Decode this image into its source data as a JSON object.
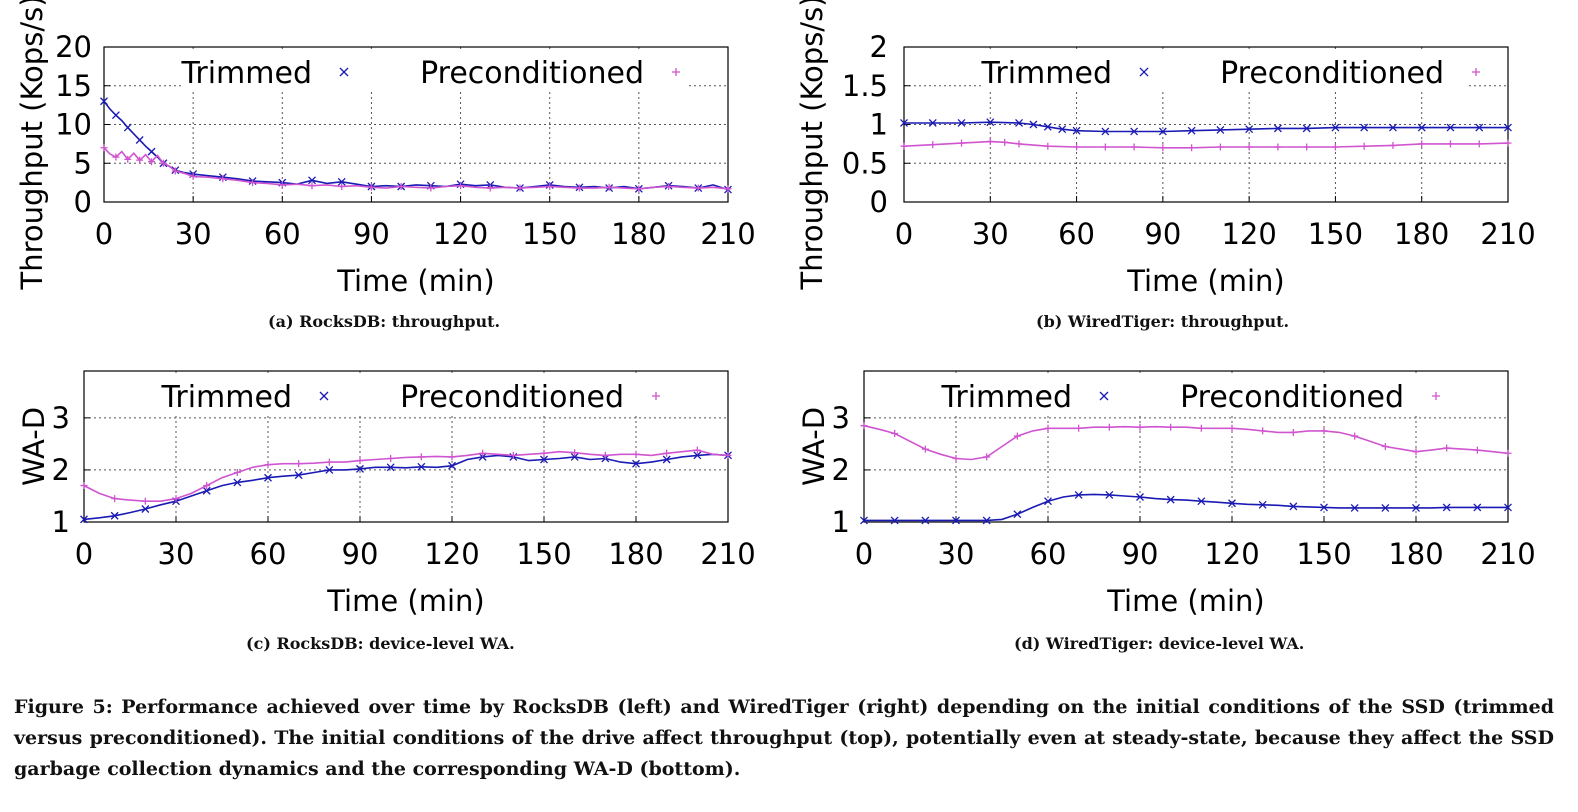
{
  "figure": {
    "caption": "Figure 5: Performance achieved over time by RocksDB (left) and WiredTiger (right) depending on the initial conditions of the SSD (trimmed versus preconditioned). The initial conditions of the drive affect throughput (top), potentially even at steady-state, because they affect the SSD garbage collection dynamics and the corresponding WA-D (bottom)."
  },
  "colors": {
    "trimmed": "#1a1ab4",
    "preconditioned": "#d055d0"
  },
  "chart_data": [
    {
      "id": "a",
      "type": "line",
      "caption": "(a) RocksDB: throughput.",
      "xlabel": "Time (min)",
      "ylabel": "Throughput (Kops/s)",
      "xlim": [
        0,
        210
      ],
      "ylim": [
        0,
        20
      ],
      "xticks": [
        "0",
        "30",
        "60",
        "90",
        "120",
        "150",
        "180",
        "210"
      ],
      "yticks": [
        "0",
        "5",
        "10",
        "15",
        "20"
      ],
      "grid": true,
      "legend_position": "top",
      "series": [
        {
          "name": "Trimmed",
          "x": [
            0,
            2,
            4,
            6,
            8,
            10,
            12,
            14,
            16,
            18,
            20,
            22,
            24,
            27,
            30,
            35,
            40,
            45,
            50,
            55,
            60,
            65,
            70,
            75,
            80,
            85,
            90,
            95,
            100,
            105,
            110,
            115,
            120,
            125,
            130,
            135,
            140,
            145,
            150,
            155,
            160,
            165,
            170,
            175,
            180,
            185,
            190,
            195,
            200,
            205,
            210
          ],
          "y": [
            13,
            12,
            11.2,
            10.5,
            9.6,
            8.8,
            8,
            7.2,
            6.5,
            5.8,
            5,
            4.6,
            4.1,
            3.8,
            3.6,
            3.4,
            3.2,
            3,
            2.7,
            2.6,
            2.5,
            2.3,
            2.8,
            2.4,
            2.6,
            2.3,
            2.0,
            2.1,
            2.0,
            2.2,
            2.1,
            2.0,
            2.3,
            2.1,
            2.2,
            1.9,
            1.8,
            2.0,
            2.2,
            2.0,
            1.9,
            2.0,
            1.8,
            2.0,
            1.7,
            1.9,
            2.1,
            2.0,
            1.8,
            2.2,
            1.6
          ]
        },
        {
          "name": "Preconditioned",
          "x": [
            0,
            2,
            4,
            6,
            8,
            10,
            12,
            14,
            16,
            18,
            20,
            22,
            24,
            27,
            30,
            35,
            40,
            45,
            50,
            55,
            60,
            65,
            70,
            75,
            80,
            85,
            90,
            95,
            100,
            105,
            110,
            115,
            120,
            125,
            130,
            135,
            140,
            145,
            150,
            155,
            160,
            165,
            170,
            175,
            180,
            185,
            190,
            195,
            200,
            205,
            210
          ],
          "y": [
            7,
            6.2,
            5.8,
            6.5,
            5.5,
            6.3,
            5.4,
            6.1,
            5.2,
            6.0,
            5.0,
            4.6,
            4.0,
            3.7,
            3.3,
            3.2,
            3.0,
            2.8,
            2.5,
            2.4,
            2.2,
            2.3,
            2.1,
            2.2,
            2.0,
            2.1,
            1.9,
            1.8,
            2.0,
            1.9,
            1.8,
            2.0,
            2.1,
            1.9,
            1.8,
            1.9,
            1.8,
            1.9,
            2.0,
            1.9,
            1.8,
            1.8,
            1.9,
            1.8,
            1.7,
            1.9,
            2.0,
            1.9,
            1.8,
            1.9,
            1.7
          ]
        }
      ]
    },
    {
      "id": "b",
      "type": "line",
      "caption": "(b) WiredTiger: throughput.",
      "xlabel": "Time (min)",
      "ylabel": "Throughput (Kops/s)",
      "xlim": [
        0,
        210
      ],
      "ylim": [
        0,
        2
      ],
      "xticks": [
        "0",
        "30",
        "60",
        "90",
        "120",
        "150",
        "180",
        "210"
      ],
      "yticks": [
        "0",
        "0.5",
        "1",
        "1.5",
        "2"
      ],
      "grid": true,
      "legend_position": "top",
      "series": [
        {
          "name": "Trimmed",
          "x": [
            0,
            10,
            20,
            30,
            40,
            45,
            50,
            55,
            60,
            70,
            80,
            90,
            100,
            110,
            120,
            130,
            140,
            150,
            160,
            170,
            180,
            190,
            200,
            210
          ],
          "y": [
            1.02,
            1.02,
            1.02,
            1.03,
            1.02,
            1.0,
            0.97,
            0.94,
            0.92,
            0.91,
            0.91,
            0.91,
            0.92,
            0.93,
            0.94,
            0.95,
            0.95,
            0.96,
            0.96,
            0.96,
            0.96,
            0.96,
            0.96,
            0.96
          ]
        },
        {
          "name": "Preconditioned",
          "x": [
            0,
            10,
            20,
            30,
            35,
            40,
            50,
            60,
            70,
            80,
            90,
            100,
            110,
            120,
            130,
            140,
            150,
            160,
            170,
            180,
            190,
            200,
            210
          ],
          "y": [
            0.72,
            0.74,
            0.76,
            0.78,
            0.77,
            0.75,
            0.72,
            0.71,
            0.71,
            0.71,
            0.7,
            0.7,
            0.71,
            0.71,
            0.71,
            0.71,
            0.71,
            0.72,
            0.73,
            0.75,
            0.75,
            0.75,
            0.76
          ]
        }
      ]
    },
    {
      "id": "c",
      "type": "line",
      "caption": "(c) RocksDB: device-level WA.",
      "xlabel": "Time (min)",
      "ylabel": "WA-D",
      "xlim": [
        0,
        210
      ],
      "ylim": [
        1,
        3.9
      ],
      "xticks": [
        "0",
        "30",
        "60",
        "90",
        "120",
        "150",
        "180",
        "210"
      ],
      "yticks": [
        "1",
        "2",
        "3"
      ],
      "grid": true,
      "legend_position": "top",
      "series": [
        {
          "name": "Trimmed",
          "x": [
            0,
            5,
            10,
            15,
            20,
            25,
            30,
            35,
            40,
            45,
            50,
            55,
            60,
            65,
            70,
            75,
            80,
            85,
            90,
            95,
            100,
            105,
            110,
            115,
            120,
            125,
            130,
            135,
            140,
            145,
            150,
            155,
            160,
            165,
            170,
            175,
            180,
            185,
            190,
            195,
            200,
            205,
            210
          ],
          "y": [
            1.05,
            1.08,
            1.12,
            1.18,
            1.25,
            1.33,
            1.4,
            1.5,
            1.6,
            1.7,
            1.76,
            1.8,
            1.85,
            1.88,
            1.9,
            1.95,
            2.0,
            2.0,
            2.02,
            2.05,
            2.05,
            2.04,
            2.06,
            2.05,
            2.08,
            2.2,
            2.25,
            2.28,
            2.25,
            2.18,
            2.2,
            2.22,
            2.25,
            2.2,
            2.22,
            2.15,
            2.12,
            2.15,
            2.2,
            2.25,
            2.28,
            2.3,
            2.28
          ]
        },
        {
          "name": "Preconditioned",
          "x": [
            0,
            5,
            10,
            15,
            20,
            25,
            30,
            35,
            40,
            45,
            50,
            55,
            60,
            65,
            70,
            75,
            80,
            85,
            90,
            95,
            100,
            105,
            110,
            115,
            120,
            125,
            130,
            135,
            140,
            145,
            150,
            155,
            160,
            165,
            170,
            175,
            180,
            185,
            190,
            195,
            200,
            205,
            210
          ],
          "y": [
            1.7,
            1.55,
            1.45,
            1.42,
            1.4,
            1.4,
            1.45,
            1.55,
            1.7,
            1.85,
            1.95,
            2.05,
            2.1,
            2.12,
            2.12,
            2.13,
            2.15,
            2.15,
            2.18,
            2.2,
            2.22,
            2.24,
            2.25,
            2.26,
            2.25,
            2.28,
            2.32,
            2.3,
            2.28,
            2.3,
            2.32,
            2.35,
            2.33,
            2.3,
            2.28,
            2.3,
            2.3,
            2.28,
            2.32,
            2.35,
            2.38,
            2.3,
            2.28
          ]
        }
      ]
    },
    {
      "id": "d",
      "type": "line",
      "caption": "(d) WiredTiger: device-level WA.",
      "xlabel": "Time (min)",
      "ylabel": "WA-D",
      "xlim": [
        0,
        210
      ],
      "ylim": [
        1,
        3.9
      ],
      "xticks": [
        "0",
        "30",
        "60",
        "90",
        "120",
        "150",
        "180",
        "210"
      ],
      "yticks": [
        "1",
        "2",
        "3"
      ],
      "grid": true,
      "legend_position": "top",
      "series": [
        {
          "name": "Trimmed",
          "x": [
            0,
            5,
            10,
            15,
            20,
            25,
            30,
            35,
            40,
            45,
            50,
            55,
            60,
            65,
            70,
            75,
            80,
            85,
            90,
            95,
            100,
            105,
            110,
            115,
            120,
            125,
            130,
            135,
            140,
            145,
            150,
            155,
            160,
            165,
            170,
            175,
            180,
            185,
            190,
            195,
            200,
            205,
            210
          ],
          "y": [
            1.03,
            1.03,
            1.03,
            1.03,
            1.03,
            1.03,
            1.03,
            1.03,
            1.03,
            1.05,
            1.15,
            1.28,
            1.4,
            1.48,
            1.52,
            1.53,
            1.52,
            1.5,
            1.48,
            1.45,
            1.43,
            1.42,
            1.4,
            1.38,
            1.36,
            1.34,
            1.33,
            1.32,
            1.3,
            1.29,
            1.28,
            1.27,
            1.27,
            1.27,
            1.27,
            1.27,
            1.27,
            1.27,
            1.28,
            1.28,
            1.28,
            1.28,
            1.28
          ]
        },
        {
          "name": "Preconditioned",
          "x": [
            0,
            5,
            10,
            15,
            20,
            25,
            30,
            35,
            40,
            45,
            50,
            55,
            60,
            65,
            70,
            75,
            80,
            85,
            90,
            95,
            100,
            105,
            110,
            115,
            120,
            125,
            130,
            135,
            140,
            145,
            150,
            155,
            160,
            165,
            170,
            175,
            180,
            185,
            190,
            195,
            200,
            205,
            210
          ],
          "y": [
            2.85,
            2.78,
            2.7,
            2.55,
            2.4,
            2.3,
            2.22,
            2.2,
            2.25,
            2.45,
            2.65,
            2.75,
            2.8,
            2.8,
            2.8,
            2.82,
            2.82,
            2.83,
            2.82,
            2.83,
            2.82,
            2.82,
            2.8,
            2.8,
            2.8,
            2.78,
            2.75,
            2.72,
            2.72,
            2.75,
            2.75,
            2.72,
            2.65,
            2.55,
            2.45,
            2.4,
            2.35,
            2.38,
            2.42,
            2.4,
            2.38,
            2.35,
            2.32
          ]
        }
      ]
    }
  ]
}
